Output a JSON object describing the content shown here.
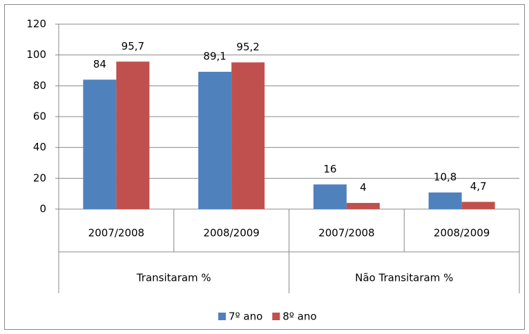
{
  "chart_data": {
    "type": "bar",
    "categories": [
      "2007/2008",
      "2008/2009",
      "2007/2008",
      "2008/2009"
    ],
    "groups": [
      "Transitaram %",
      "Não Transitaram %"
    ],
    "series": [
      {
        "name": "7º ano",
        "color": "#4f81bd",
        "values": [
          84,
          89.1,
          16,
          10.8
        ],
        "value_labels": [
          "84",
          "89,1",
          "16",
          "10,8"
        ]
      },
      {
        "name": "8º ano",
        "color": "#c0504d",
        "values": [
          95.7,
          95.2,
          4,
          4.7
        ],
        "value_labels": [
          "95,7",
          "95,2",
          "4",
          "4,7"
        ]
      }
    ],
    "ylim": [
      0,
      120
    ],
    "yticks": [
      0,
      20,
      40,
      60,
      80,
      100,
      120
    ],
    "grid": true,
    "legend": "bottom"
  }
}
